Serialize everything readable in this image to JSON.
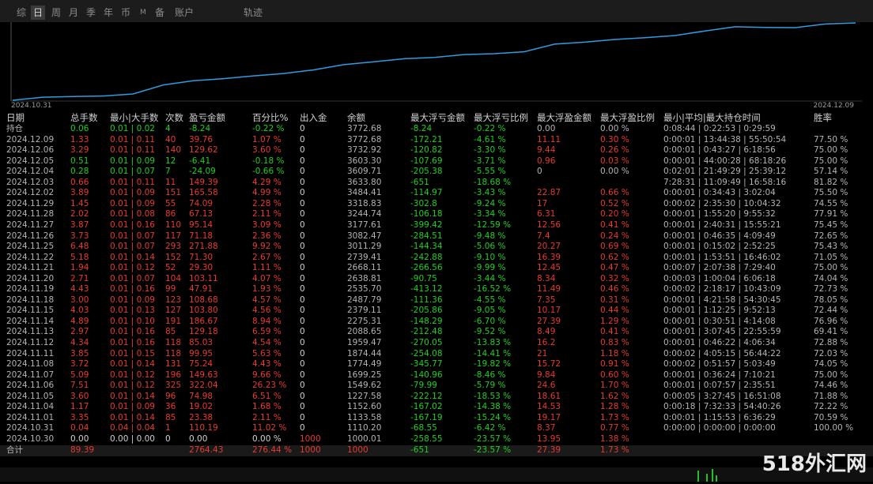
{
  "tabs": [
    "综",
    "日",
    "周",
    "月",
    "季",
    "年",
    "币",
    "M",
    "备",
    "账户",
    "轨迹"
  ],
  "active_tab": 1,
  "chart": {
    "x_start": "2024.10.31",
    "x_end": "2024.12.09",
    "line_color": "#2f9be0"
  },
  "table": {
    "headers": [
      "日期",
      "总手数",
      "最小|大手数",
      "次数",
      "盈亏金额",
      "百分比%",
      "出入金",
      "余额",
      "最大浮亏金额",
      "最大浮亏比例",
      "最大浮盈金额",
      "最大浮盈比例",
      "最小|平均|最大持仓时间",
      "胜率"
    ],
    "rows": [
      [
        "持仓",
        "0.06",
        "0.01 | 0.02",
        "4",
        "-8.24",
        "-0.22 %",
        "0",
        "3772.68",
        "-8.24",
        "-0.22 %",
        "0.00",
        "0.00 %",
        "0:08:44 | 0:22:53 | 0:29:59",
        null
      ],
      [
        "2024.12.09",
        "1.33",
        "0.01 | 0.11",
        "40",
        "39.76",
        "1.07 %",
        "0",
        "3772.68",
        "-172.21",
        "-4.61 %",
        "11.11",
        "0.30 %",
        "0:00:01 | 13:44:38 | 55:50:54",
        "77.50 %"
      ],
      [
        "2024.12.06",
        "3.29",
        "0.01 | 0.11",
        "140",
        "129.62",
        "3.60 %",
        "0",
        "3732.92",
        "-120.82",
        "-3.30 %",
        "9.44",
        "0.26 %",
        "0:00:01 | 0:43:27 | 6:18:56",
        "75.00 %"
      ],
      [
        "2024.12.05",
        "0.51",
        "0.01 | 0.09",
        "12",
        "-6.41",
        "-0.18 %",
        "0",
        "3603.30",
        "-107.69",
        "-3.71 %",
        "0.96",
        "0.03 %",
        "0:00:01 | 44:00:28 | 68:18:26",
        "75.00 %"
      ],
      [
        "2024.12.04",
        "0.28",
        "0.01 | 0.07",
        "7",
        "-24.09",
        "-0.66 %",
        "0",
        "3609.71",
        "-205.38",
        "-5.55 %",
        "0",
        "0.00 %",
        "0:02:01 | 21:49:29 | 25:39:12",
        "57.14 %"
      ],
      [
        "2024.12.03",
        "0.66",
        "0.01 | 0.11",
        "11",
        "149.39",
        "4.29 %",
        "0",
        "3633.80",
        "-651",
        "-18.68 %",
        null,
        null,
        "7:28:31 | 11:09:49 | 16:58:16",
        "81.82 %"
      ],
      [
        "2024.12.02",
        "3.89",
        "0.01 | 0.09",
        "151",
        "165.58",
        "4.99 %",
        "0",
        "3484.41",
        "-114.97",
        "-3.43 %",
        "22.87",
        "0.66 %",
        "0:00:01 | 0:34:43 | 3:02:04",
        "75.50 %"
      ],
      [
        "2024.11.29",
        "1.45",
        "0.01 | 0.09",
        "55",
        "74.09",
        "2.28 %",
        "0",
        "3318.83",
        "-302.8",
        "-9.24 %",
        "17",
        "0.52 %",
        "0:00:02 | 2:35:30 | 10:04:32",
        "74.55 %"
      ],
      [
        "2024.11.28",
        "2.02",
        "0.01 | 0.08",
        "86",
        "67.13",
        "2.11 %",
        "0",
        "3244.74",
        "-106.18",
        "-3.34 %",
        "6.31",
        "0.20 %",
        "0:00:01 | 1:55:20 | 9:55:32",
        "77.91 %"
      ],
      [
        "2024.11.27",
        "3.87",
        "0.01 | 0.16",
        "110",
        "95.14",
        "3.09 %",
        "0",
        "3177.61",
        "-399.42",
        "-12.59 %",
        "12.56",
        "0.41 %",
        "0:00:01 | 2:40:31 | 15:55:21",
        "75.45 %"
      ],
      [
        "2024.11.26",
        "3.73",
        "0.01 | 0.07",
        "117",
        "71.18",
        "2.36 %",
        "0",
        "3082.47",
        "-284.51",
        "-9.48 %",
        "7.4",
        "0.24 %",
        "0:00:01 | 0:46:35 | 4:09:49",
        "72.65 %"
      ],
      [
        "2024.11.25",
        "6.48",
        "0.01 | 0.07",
        "293",
        "271.88",
        "9.92 %",
        "0",
        "3011.29",
        "-144.34",
        "-5.06 %",
        "20.27",
        "0.69 %",
        "0:00:01 | 0:15:02 | 2:52:25",
        "75.43 %"
      ],
      [
        "2024.11.22",
        "5.18",
        "0.01 | 0.14",
        "152",
        "71.30",
        "2.67 %",
        "0",
        "2739.41",
        "-242.88",
        "-9.10 %",
        "16.39",
        "0.62 %",
        "0:00:01 | 1:53:51 | 16:46:02",
        "71.05 %"
      ],
      [
        "2024.11.21",
        "1.94",
        "0.01 | 0.12",
        "52",
        "29.30",
        "1.11 %",
        "0",
        "2668.11",
        "-266.56",
        "-9.99 %",
        "12.45",
        "0.47 %",
        "0:00:07 | 2:07:38 | 7:29:40",
        "75.00 %"
      ],
      [
        "2024.11.20",
        "2.71",
        "0.01 | 0.07",
        "104",
        "103.11",
        "4.07 %",
        "0",
        "2638.81",
        "-90.75",
        "-3.44 %",
        "8.34",
        "0.32 %",
        "0:00:03 | 1:00:04 | 6:06:18",
        "74.04 %"
      ],
      [
        "2024.11.19",
        "4.43",
        "0.01 | 0.16",
        "99",
        "47.91",
        "1.93 %",
        "0",
        "2535.70",
        "-413.12",
        "-16.52 %",
        "11.49",
        "0.46 %",
        "0:00:02 | 2:18:17 | 10:43:09",
        "72.73 %"
      ],
      [
        "2024.11.18",
        "3.00",
        "0.01 | 0.09",
        "123",
        "108.68",
        "4.57 %",
        "0",
        "2487.79",
        "-111.36",
        "-4.55 %",
        "7.35",
        "0.31 %",
        "0:00:01 | 4:21:58 | 54:30:45",
        "78.05 %"
      ],
      [
        "2024.11.15",
        "4.03",
        "0.01 | 0.13",
        "127",
        "103.80",
        "4.56 %",
        "0",
        "2379.11",
        "-205.86",
        "-9.05 %",
        "10.17",
        "0.44 %",
        "0:00:01 | 1:12:25 | 9:52:13",
        "72.44 %"
      ],
      [
        "2024.11.14",
        "4.89",
        "0.01 | 0.10",
        "191",
        "186.67",
        "8.94 %",
        "0",
        "2275.31",
        "-148.29",
        "-6.70 %",
        "27.39",
        "1.29 %",
        "0:00:01 | 0:30:51 | 4:14:08",
        "76.96 %"
      ],
      [
        "2024.11.13",
        "2.97",
        "0.01 | 0.16",
        "85",
        "129.18",
        "6.59 %",
        "0",
        "2088.65",
        "-212.48",
        "-9.52 %",
        "8.49",
        "0.41 %",
        "0:00:01 | 3:07:45 | 22:55:59",
        "69.41 %"
      ],
      [
        "2024.11.12",
        "4.34",
        "0.01 | 0.16",
        "118",
        "85.03",
        "4.54 %",
        "0",
        "1959.47",
        "-270.05",
        "-13.83 %",
        "16.2",
        "0.83 %",
        "0:00:01 | 0:46:22 | 4:06:34",
        "72.88 %"
      ],
      [
        "2024.11.11",
        "3.85",
        "0.01 | 0.15",
        "118",
        "99.95",
        "5.63 %",
        "0",
        "1874.44",
        "-254.08",
        "-14.41 %",
        "21",
        "1.18 %",
        "0:00:02 | 4:05:15 | 56:44:22",
        "72.03 %"
      ],
      [
        "2024.11.08",
        "3.72",
        "0.01 | 0.14",
        "131",
        "75.24",
        "4.43 %",
        "0",
        "1774.49",
        "-345.77",
        "-19.82 %",
        "15.72",
        "0.91 %",
        "0:00:02 | 0:51:57 | 5:03:49",
        "74.05 %"
      ],
      [
        "2024.11.07",
        "5.09",
        "0.01 | 0.12",
        "196",
        "149.63",
        "9.66 %",
        "0",
        "1699.25",
        "-140.96",
        "-8.46 %",
        "9.84",
        "0.60 %",
        "0:00:01 | 0:36:24 | 7:10:21",
        "75.00 %"
      ],
      [
        "2024.11.06",
        "7.51",
        "0.01 | 0.12",
        "325",
        "322.04",
        "26.23 %",
        "0",
        "1549.62",
        "-79.99",
        "-5.79 %",
        "24.6",
        "1.70 %",
        "0:00:01 | 0:07:57 | 2:35:51",
        "74.46 %"
      ],
      [
        "2024.11.05",
        "3.60",
        "0.01 | 0.14",
        "96",
        "74.98",
        "6.51 %",
        "0",
        "1227.58",
        "-222.12",
        "-18.53 %",
        "18.61",
        "1.62 %",
        "0:00:05 | 3:27:45 | 16:51:08",
        "71.88 %"
      ],
      [
        "2024.11.04",
        "1.17",
        "0.01 | 0.09",
        "36",
        "19.02",
        "1.68 %",
        "0",
        "1152.60",
        "-167.02",
        "-14.38 %",
        "14.53",
        "1.28 %",
        "0:00:18 | 7:32:33 | 54:40:26",
        "72.22 %"
      ],
      [
        "2024.11.01",
        "3.35",
        "0.01 | 0.14",
        "85",
        "23.38",
        "2.11 %",
        "0",
        "1133.58",
        "-167.19",
        "-15.24 %",
        "19.17",
        "1.73 %",
        "0:00:01 | 1:15:53 | 6:36:29",
        "70.59 %"
      ],
      [
        "2024.10.31",
        "0.04",
        "0.04 | 0.04",
        "1",
        "110.19",
        "11.02 %",
        "0",
        "1110.20",
        "-68.55",
        "-6.42 %",
        "8.37",
        "0.77 %",
        "0:00:00 | 0:00:00 | 0:00:00",
        "100.00 %"
      ],
      [
        "2024.10.30",
        "0.00",
        "0.00 | 0.00",
        "0",
        "0.00",
        "0.00 %",
        "1000",
        "1000.01",
        "-258.55",
        "-23.57 %",
        "13.95",
        "1.38 %",
        null,
        null
      ],
      [
        "合计",
        "89.39",
        null,
        null,
        "2764.43",
        "276.44 %",
        "1000",
        "1000",
        "-651",
        "-23.57 %",
        "27.39",
        "1.73 %",
        null,
        null
      ]
    ]
  },
  "watermark": "518外汇网"
}
